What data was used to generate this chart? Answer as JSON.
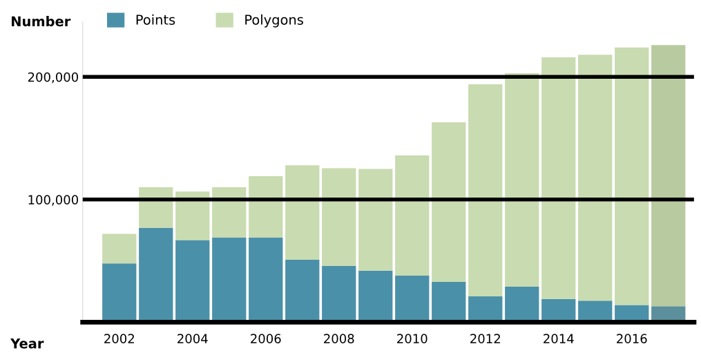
{
  "chart_data": {
    "type": "bar",
    "stacked": true,
    "ylabel": "Number",
    "xlabel": "Year",
    "categories": [
      "2002",
      null,
      "2004",
      null,
      "2006",
      null,
      "2008",
      null,
      "2010",
      null,
      "2012",
      null,
      "2014",
      null,
      "2016",
      null
    ],
    "series": [
      {
        "name": "Points",
        "color": "#4a90a8",
        "colors": [
          "#4a90a8",
          "#4a90a8",
          "#4a90a8",
          "#4a90a8",
          "#4a90a8",
          "#4a90a8",
          "#4a90a8",
          "#4a90a8",
          "#4a90a8",
          "#4a90a8",
          "#4a90a8",
          "#4a90a8",
          "#4a90a8",
          "#4a90a8",
          "#4a90a8",
          "#5b8f9c"
        ],
        "values": [
          48000,
          77000,
          67000,
          69000,
          69000,
          51000,
          46000,
          42000,
          38000,
          33000,
          21000,
          29000,
          19000,
          17500,
          14000,
          13000
        ]
      },
      {
        "name": "Polygons",
        "color": "#c9dbb0",
        "colors": [
          "#c9dbb0",
          "#c9dbb0",
          "#c9dbb0",
          "#c9dbb0",
          "#c9dbb0",
          "#c9dbb0",
          "#c9dbb0",
          "#c9dbb0",
          "#c9dbb0",
          "#c9dbb0",
          "#c9dbb0",
          "#c9dbb0",
          "#c9dbb0",
          "#c9dbb0",
          "#c9dbb0",
          "#b8cba0"
        ],
        "values": [
          24000,
          33000,
          39500,
          41000,
          50000,
          77000,
          79500,
          83000,
          98000,
          130000,
          173000,
          174000,
          197000,
          200500,
          210000,
          213000
        ]
      }
    ],
    "ylim": [
      0,
      245000
    ],
    "yticks": [
      {
        "value": 100000,
        "label": "100,000"
      },
      {
        "value": 200000,
        "label": "200,000"
      }
    ],
    "grid": "y",
    "legend": "top left"
  }
}
